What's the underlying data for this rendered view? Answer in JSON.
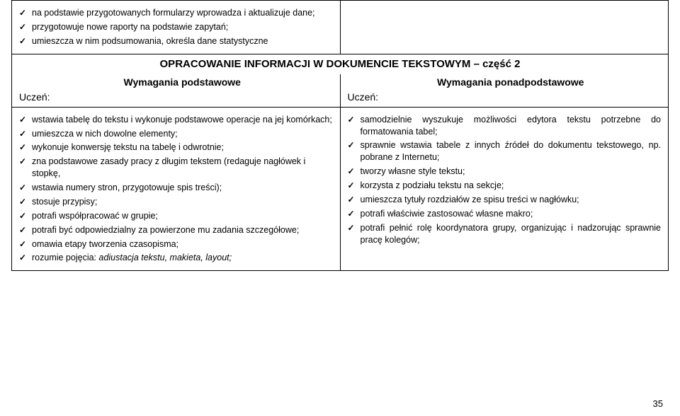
{
  "top_left_items": [
    "na podstawie przygotowanych formularzy wprowadza i aktualizuje dane;",
    "przygotowuje nowe raporty na podstawie zapytań;",
    "umieszcza w nim podsumowania, określa dane statystyczne"
  ],
  "section_title": "OPRACOWANIE INFORMACJI W DOKUMENCIE TEKSTOWYM – część 2",
  "left_subtitle": "Wymagania podstawowe",
  "right_subtitle": "Wymagania ponadpodstawowe",
  "uczen": "Uczeń:",
  "left_items": [
    "wstawia tabelę do tekstu i wykonuje podstawowe operacje na jej komórkach;",
    "umieszcza w nich dowolne elementy;",
    "wykonuje konwersję tekstu na tabelę i odwrotnie;",
    "zna podstawowe zasady pracy z długim tekstem (redaguje nagłówek i stopkę,",
    " wstawia numery stron, przygotowuje spis treści);",
    "stosuje przypisy;",
    "potrafi współpracować w grupie;",
    "potrafi być odpowiedzialny za powierzone mu zadania szczegółowe;",
    "omawia etapy tworzenia czasopisma;"
  ],
  "left_last_item_prefix": "rozumie pojęcia: ",
  "left_last_item_italic": "adiustacja tekstu, makieta, layout;",
  "right_items": [
    "samodzielnie wyszukuje możliwości edytora tekstu potrzebne do formatowania tabel;",
    "sprawnie wstawia tabele z innych źródeł do dokumentu tekstowego, np. pobrane z Internetu;",
    "tworzy własne style tekstu;",
    "korzysta z podziału tekstu na sekcje;",
    "umieszcza tytuły rozdziałów ze spisu treści w nagłówku;",
    "potrafi właściwie zastosować własne makro;",
    "potrafi pełnić rolę koordynatora grupy, organizując i nadzorując sprawnie pracę kolegów;"
  ],
  "page_number": "35"
}
